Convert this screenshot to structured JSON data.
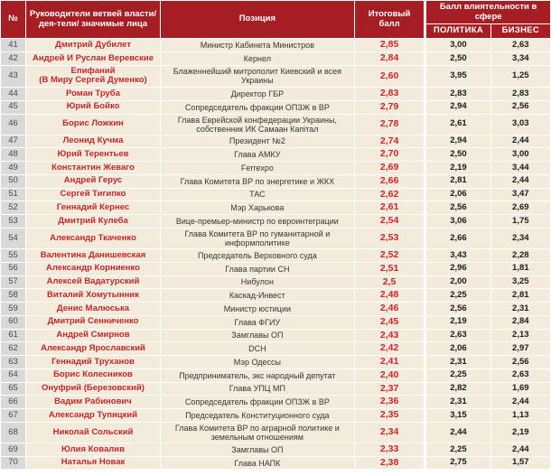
{
  "header": {
    "num": "№",
    "leaders": "Руководители ветвей власти/дея-тели/ значимые лица",
    "position": "Позиция",
    "total_score": "Итоговый балл",
    "sphere_group": "Балл влиятельности в сфере",
    "politics": "ПОЛИТИКА",
    "business": "БИЗНЕС"
  },
  "colors": {
    "header_red": "#a51e23",
    "name_red": "#c1272c",
    "score_red": "#d2232a",
    "row_cream": "#f3ebdb",
    "num_gray": "#d9d9d9"
  },
  "chart_data": {
    "type": "table",
    "columns": [
      "№",
      "Руководители ветвей власти/дея-тели/ значимые лица",
      "Позиция",
      "Итоговый балл",
      "ПОЛИТИКА",
      "БИЗНЕС"
    ],
    "rows": [
      {
        "num": "41",
        "name": "Дмитрий Дубилет",
        "position": "Министр Кабинета Министров",
        "total": "2,85",
        "politics": "3,00",
        "business": "2,63"
      },
      {
        "num": "42",
        "name": "Андрей И Руслан Веревские",
        "position": "Кернел",
        "total": "2,84",
        "politics": "2,50",
        "business": "3,34"
      },
      {
        "num": "43",
        "name": "Епифаний\n(В Миру Сергей Думенко)",
        "position": "Блаженнейший митрополит Киевский и всея Украины",
        "total": "2,60",
        "politics": "3,95",
        "business": "1,25"
      },
      {
        "num": "44",
        "name": "Роман Труба",
        "position": "Директор ГБР",
        "total": "2,83",
        "politics": "2,83",
        "business": "2,83"
      },
      {
        "num": "45",
        "name": "Юрий Бойко",
        "position": "Сопредседатель фракции ОПЗЖ в ВР",
        "total": "2,79",
        "politics": "2,94",
        "business": "2,56"
      },
      {
        "num": "46",
        "name": "Борис Ложкин",
        "position": "Глава Еврейской конфедерации Украины, собственник ИК Самаан Капітал",
        "total": "2,78",
        "politics": "2,61",
        "business": "3,03"
      },
      {
        "num": "47",
        "name": "Леонид Кучма",
        "position": "Президент №2",
        "total": "2,74",
        "politics": "2,94",
        "business": "2,44"
      },
      {
        "num": "48",
        "name": "Юрий Терентьев",
        "position": "Глава АМКУ",
        "total": "2,70",
        "politics": "2,50",
        "business": "3,00"
      },
      {
        "num": "49",
        "name": "Константин Жеваго",
        "position": "Ferrexpo",
        "total": "2,69",
        "politics": "2,19",
        "business": "3,44"
      },
      {
        "num": "50",
        "name": "Андрей Герус",
        "position": "Глава Комитета ВР по энергетике и ЖКХ",
        "total": "2,66",
        "politics": "2,81",
        "business": "2,44"
      },
      {
        "num": "51",
        "name": "Сергей Тигипко",
        "position": "ТАС",
        "total": "2,62",
        "politics": "2,06",
        "business": "3,47"
      },
      {
        "num": "52",
        "name": "Геннадий Кернес",
        "position": "Мэр Харькова",
        "total": "2,61",
        "politics": "2,56",
        "business": "2,69"
      },
      {
        "num": "53",
        "name": "Дмитрий Кулеба",
        "position": "Вице-премьер-министр по евроинтеграции",
        "total": "2,54",
        "politics": "3,06",
        "business": "1,75"
      },
      {
        "num": "54",
        "name": "Александр Ткаченко",
        "position": "Глава Комитета ВР по гуманитарной и информполитике",
        "total": "2,53",
        "politics": "2,66",
        "business": "2,34"
      },
      {
        "num": "55",
        "name": "Валентина Данишевская",
        "position": "Председатель Верховного суда",
        "total": "2,52",
        "politics": "3,43",
        "business": "2,28"
      },
      {
        "num": "56",
        "name": "Александр Корниенко",
        "position": "Глава партии СН",
        "total": "2,51",
        "politics": "2,96",
        "business": "1,81"
      },
      {
        "num": "57",
        "name": "Алексей Вадатурский",
        "position": "Нибулон",
        "total": "2,5",
        "politics": "2,00",
        "business": "3,25"
      },
      {
        "num": "58",
        "name": "Виталий Хомутынник",
        "position": "Каскад-Инвест",
        "total": "2,48",
        "politics": "2,25",
        "business": "2,81"
      },
      {
        "num": "59",
        "name": "Денис Малюська",
        "position": "Министр юстиции",
        "total": "2,46",
        "politics": "2,56",
        "business": "2,31"
      },
      {
        "num": "60",
        "name": "Дмитрий Сенниченко",
        "position": "Глава ФГИУ",
        "total": "2,45",
        "politics": "2,19",
        "business": "2,84"
      },
      {
        "num": "61",
        "name": "Андрей Смирнов",
        "position": "Замглавы ОП",
        "total": "2,43",
        "politics": "2,63",
        "business": "2,13"
      },
      {
        "num": "62",
        "name": "Александр Ярославский",
        "position": "DCH",
        "total": "2,42",
        "politics": "2,06",
        "business": "2,97"
      },
      {
        "num": "63",
        "name": "Геннадий Труханов",
        "position": "Мэр Одессы",
        "total": "2,41",
        "politics": "2,31",
        "business": "2,56"
      },
      {
        "num": "64",
        "name": "Борис Колесников",
        "position": "Предприниматель, экс народный депутат",
        "total": "2,40",
        "politics": "2,25",
        "business": "2,63"
      },
      {
        "num": "65",
        "name": "Онуфрий (Березовский)",
        "position": "Глава УПЦ МП",
        "total": "2,37",
        "politics": "2,82",
        "business": "1,69"
      },
      {
        "num": "66",
        "name": "Вадим Рабинович",
        "position": "Сопредседатель фракции ОПЗЖ в ВР",
        "total": "2,36",
        "politics": "2,31",
        "business": "2,44"
      },
      {
        "num": "67",
        "name": "Александр Тупицкий",
        "position": "Председатель Конституционного суда",
        "total": "2,35",
        "politics": "3,15",
        "business": "1,13"
      },
      {
        "num": "68",
        "name": "Николай Сольский",
        "position": "Глава Комитета ВР по аграрной политике и земельным отношениям",
        "total": "2,34",
        "politics": "2,44",
        "business": "2,19"
      },
      {
        "num": "69",
        "name": "Юлия Ковалив",
        "position": "Замглавы ОП",
        "total": "2,33",
        "politics": "2,25",
        "business": "2,44"
      },
      {
        "num": "70",
        "name": "Наталья Новак",
        "position": "Глава НАПК",
        "total": "2,38",
        "politics": "2,75",
        "business": "1,57"
      }
    ]
  }
}
